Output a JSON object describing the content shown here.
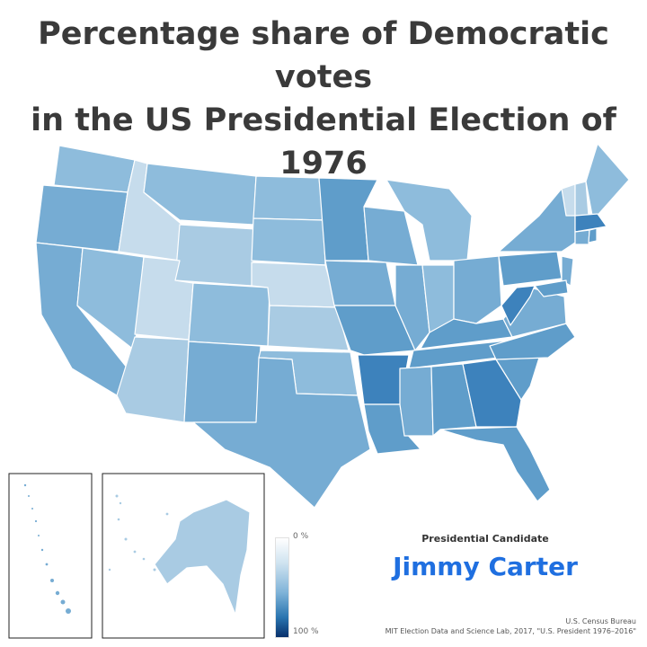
{
  "title": {
    "line1": "Percentage share of Democratic votes",
    "line2": "in the US Presidential Election of",
    "line3": "1976"
  },
  "legend": {
    "min_label": "0 %",
    "max_label": "100 %"
  },
  "candidate": {
    "label": "Presidential Candidate",
    "name": "Jimmy Carter"
  },
  "source": {
    "line1": "U.S. Census Bureau",
    "line2": "MIT Election Data and Science Lab, 2017, \"U.S. President 1976–2016\""
  },
  "colors": {
    "lightest": "#c6dcec",
    "light": "#a9cbe3",
    "mid": "#8ebcdc",
    "midDark": "#76acd3",
    "dark": "#5f9dca",
    "darkest": "#3d82bc",
    "candidate": "#1f6fe0"
  }
}
